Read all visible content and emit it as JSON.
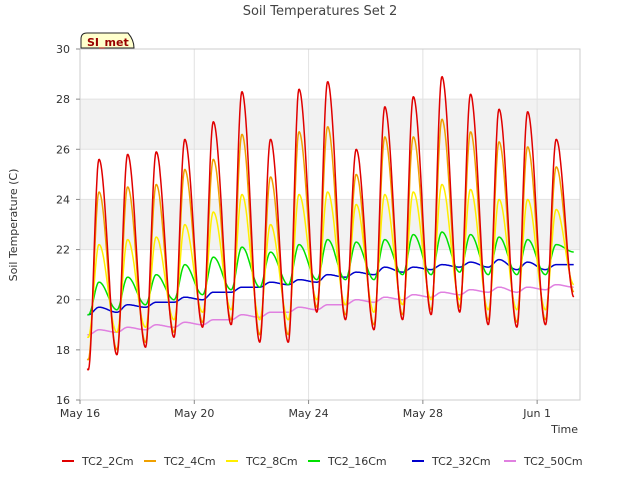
{
  "chart_data": {
    "type": "line",
    "title": "Soil Temperatures Set 2",
    "xlabel": "Time",
    "ylabel": "Soil Temperature (C)",
    "site_label": "SI_met",
    "x_range": [
      "2023-05-16",
      "2023-06-02T12:00"
    ],
    "ylim": [
      16,
      30
    ],
    "yticks": [
      16,
      18,
      20,
      22,
      24,
      26,
      28,
      30
    ],
    "xticks": [
      {
        "date": "2023-05-16",
        "label": "May 16"
      },
      {
        "date": "2023-05-20",
        "label": "May 20"
      },
      {
        "date": "2023-05-24",
        "label": "May 24"
      },
      {
        "date": "2023-05-28",
        "label": "May 28"
      },
      {
        "date": "2023-06-01",
        "label": "Jun 1"
      }
    ],
    "grid": true,
    "legend": "bottom",
    "days": [
      "2023-05-16",
      "2023-05-17",
      "2023-05-18",
      "2023-05-19",
      "2023-05-20",
      "2023-05-21",
      "2023-05-22",
      "2023-05-23",
      "2023-05-24",
      "2023-05-25",
      "2023-05-26",
      "2023-05-27",
      "2023-05-28",
      "2023-05-29",
      "2023-05-30",
      "2023-05-31",
      "2023-06-01",
      "2023-06-02"
    ],
    "series": [
      {
        "name": "TC2_2Cm",
        "color": "#e00000",
        "daily_max": [
          25.6,
          25.8,
          25.9,
          26.4,
          27.1,
          28.3,
          26.4,
          28.4,
          28.7,
          26.0,
          27.7,
          28.1,
          28.9,
          28.2,
          27.6,
          27.5,
          26.4
        ],
        "daily_min": [
          17.2,
          17.8,
          18.1,
          18.5,
          18.9,
          19.0,
          18.3,
          18.3,
          19.5,
          19.2,
          18.8,
          19.2,
          19.4,
          19.5,
          19.0,
          18.9,
          19.0,
          20.1
        ]
      },
      {
        "name": "TC2_4Cm",
        "color": "#f0a000",
        "daily_max": [
          24.3,
          24.5,
          24.6,
          25.2,
          25.6,
          26.6,
          24.9,
          26.7,
          26.9,
          25.0,
          26.5,
          26.5,
          27.2,
          26.7,
          26.3,
          26.1,
          25.3
        ],
        "daily_min": [
          17.6,
          18.0,
          18.3,
          18.7,
          19.1,
          19.2,
          18.6,
          18.6,
          19.7,
          19.4,
          19.0,
          19.4,
          19.6,
          19.7,
          19.2,
          19.1,
          19.2,
          20.3
        ]
      },
      {
        "name": "TC2_8Cm",
        "color": "#ffee00",
        "daily_max": [
          22.2,
          22.4,
          22.5,
          23.0,
          23.5,
          24.2,
          23.0,
          24.2,
          24.3,
          23.8,
          24.2,
          24.3,
          24.6,
          24.4,
          24.0,
          24.0,
          23.6
        ],
        "daily_min": [
          18.5,
          18.7,
          18.9,
          19.2,
          19.5,
          19.6,
          19.2,
          19.2,
          20.0,
          19.8,
          19.5,
          19.8,
          20.0,
          20.0,
          19.6,
          19.6,
          19.6,
          20.6
        ]
      },
      {
        "name": "TC2_16Cm",
        "color": "#00e000",
        "daily_max": [
          20.7,
          20.9,
          21.0,
          21.4,
          21.7,
          22.1,
          21.9,
          22.2,
          22.4,
          22.3,
          22.4,
          22.6,
          22.7,
          22.6,
          22.5,
          22.4,
          22.2
        ],
        "daily_min": [
          19.4,
          19.6,
          19.8,
          20.0,
          20.2,
          20.4,
          20.5,
          20.6,
          20.8,
          20.8,
          20.8,
          21.0,
          21.0,
          21.1,
          21.0,
          21.0,
          21.0,
          21.9
        ]
      },
      {
        "name": "TC2_32Cm",
        "color": "#0000cc",
        "daily_max": [
          19.7,
          19.8,
          19.9,
          20.1,
          20.3,
          20.5,
          20.7,
          20.8,
          21.0,
          21.1,
          21.3,
          21.3,
          21.4,
          21.5,
          21.6,
          21.5,
          21.4
        ],
        "daily_min": [
          19.4,
          19.5,
          19.7,
          19.9,
          20.0,
          20.3,
          20.5,
          20.6,
          20.7,
          20.9,
          21.0,
          21.1,
          21.2,
          21.3,
          21.3,
          21.2,
          21.2,
          21.4
        ]
      },
      {
        "name": "TC2_50Cm",
        "color": "#e080e0",
        "daily_max": [
          18.8,
          18.9,
          19.0,
          19.1,
          19.2,
          19.4,
          19.5,
          19.7,
          19.8,
          20.0,
          20.1,
          20.2,
          20.3,
          20.4,
          20.5,
          20.5,
          20.6
        ],
        "daily_min": [
          18.6,
          18.7,
          18.8,
          18.9,
          19.0,
          19.2,
          19.3,
          19.5,
          19.6,
          19.8,
          19.9,
          20.0,
          20.1,
          20.2,
          20.3,
          20.3,
          20.4,
          20.5
        ]
      }
    ]
  }
}
